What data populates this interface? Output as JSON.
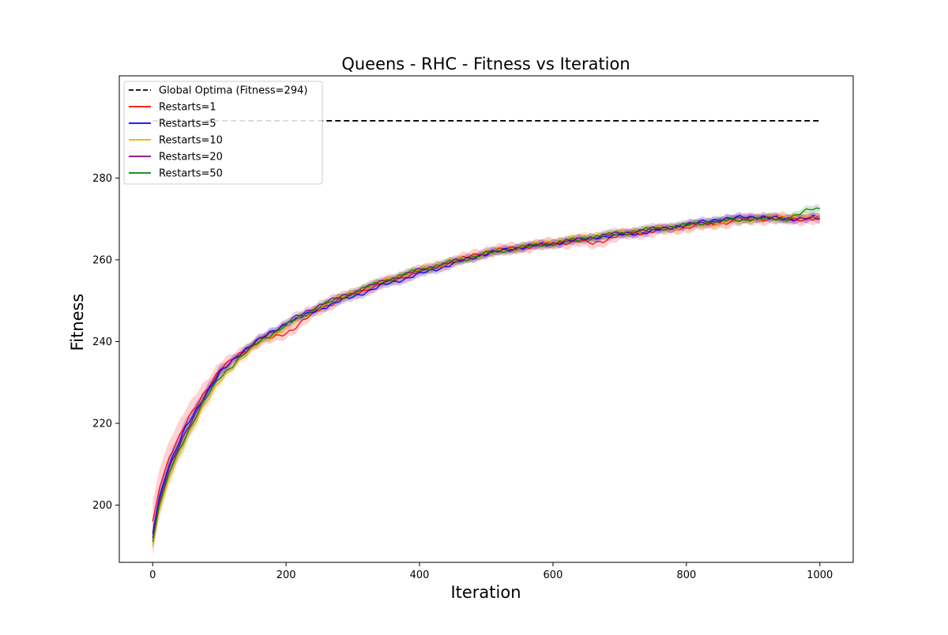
{
  "chart_data": {
    "type": "line",
    "title": "Queens - RHC - Fitness vs Iteration",
    "xlabel": "Iteration",
    "ylabel": "Fitness",
    "xlim": [
      -50,
      1050
    ],
    "ylim": [
      186,
      305
    ],
    "x_ticks": [
      0,
      200,
      400,
      600,
      800,
      1000
    ],
    "y_ticks": [
      200,
      220,
      240,
      260,
      280
    ],
    "grid": false,
    "legend_position": "top-left",
    "reference_line": {
      "name": "Global Optima (Fitness=294)",
      "y": 294,
      "x_range": [
        0,
        1000
      ],
      "color": "#000000",
      "style": "dashed"
    },
    "series": [
      {
        "name": "Restarts=1",
        "color": "#ff0000",
        "x": [
          0,
          10,
          25,
          50,
          75,
          100,
          130,
          160,
          190,
          210,
          250,
          300,
          350,
          400,
          450,
          500,
          550,
          600,
          640,
          660,
          700,
          750,
          800,
          850,
          900,
          950,
          1000
        ],
        "y": [
          196,
          204,
          212,
          220,
          227,
          233,
          237,
          240,
          241.5,
          243,
          248,
          251.5,
          254.5,
          257,
          259.5,
          262,
          263,
          264,
          264.5,
          264,
          266,
          267,
          268,
          269,
          270,
          270,
          270
        ],
        "band": 1.3
      },
      {
        "name": "Restarts=5",
        "color": "#0000ff",
        "x": [
          0,
          10,
          25,
          50,
          75,
          100,
          130,
          160,
          190,
          210,
          250,
          300,
          350,
          400,
          450,
          500,
          550,
          600,
          640,
          660,
          700,
          750,
          800,
          850,
          900,
          950,
          1000
        ],
        "y": [
          193,
          202,
          210,
          219,
          226,
          232,
          237,
          240.5,
          243.5,
          245,
          248,
          251,
          254,
          256.5,
          259,
          261.5,
          263,
          264,
          265,
          265.5,
          266,
          267,
          268.5,
          270,
          270.5,
          270,
          270.5
        ],
        "band": 0.9
      },
      {
        "name": "Restarts=10",
        "color": "#ffa500",
        "x": [
          0,
          10,
          25,
          50,
          75,
          100,
          130,
          160,
          190,
          210,
          250,
          300,
          350,
          400,
          450,
          500,
          550,
          600,
          640,
          660,
          700,
          750,
          800,
          850,
          900,
          950,
          1000
        ],
        "y": [
          190,
          199,
          207,
          216,
          224,
          230,
          235.5,
          239.5,
          242.5,
          244.5,
          248.5,
          252,
          255,
          257.5,
          259.5,
          261.5,
          263,
          264.5,
          265.5,
          266,
          266.5,
          267.5,
          268,
          269,
          270,
          270.5,
          270.5
        ],
        "band": 0.9
      },
      {
        "name": "Restarts=20",
        "color": "#800080",
        "x": [
          0,
          10,
          25,
          50,
          75,
          100,
          130,
          160,
          190,
          210,
          250,
          300,
          350,
          400,
          450,
          500,
          550,
          600,
          640,
          660,
          700,
          750,
          800,
          850,
          900,
          950,
          1000
        ],
        "y": [
          192,
          201,
          209,
          218,
          226,
          232.5,
          237,
          240.5,
          243.5,
          245.5,
          249,
          252,
          255,
          257.5,
          259.5,
          261.5,
          263,
          264,
          265,
          265.5,
          266.5,
          267.5,
          268.5,
          269.5,
          270.5,
          270,
          270
        ],
        "band": 1.0
      },
      {
        "name": "Restarts=50",
        "color": "#008000",
        "x": [
          0,
          10,
          25,
          50,
          75,
          100,
          130,
          160,
          190,
          210,
          250,
          300,
          350,
          400,
          450,
          500,
          550,
          600,
          640,
          660,
          700,
          750,
          800,
          850,
          900,
          950,
          990,
          1000
        ],
        "y": [
          191,
          200,
          208,
          217,
          225,
          231,
          236,
          240,
          243,
          245,
          248.5,
          252,
          255,
          257.5,
          259.5,
          261.5,
          263,
          264,
          265,
          265.5,
          266.5,
          267.5,
          268.5,
          269.5,
          270,
          270,
          272.5,
          272.5
        ],
        "band": 0.9
      }
    ]
  }
}
